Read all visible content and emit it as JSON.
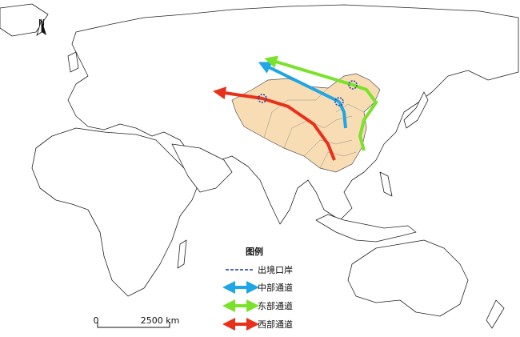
{
  "north_arrow": {
    "label": "N"
  },
  "legend": {
    "title": "图例",
    "items": [
      "出境口岸",
      "中部通道",
      "东部通道",
      "西部通道"
    ]
  },
  "scale_bar": {
    "start": "0",
    "end": "2500 km"
  }
}
